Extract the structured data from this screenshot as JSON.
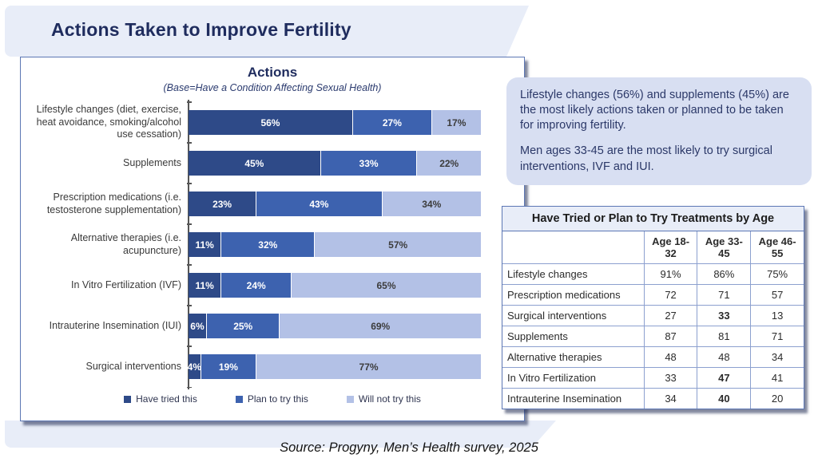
{
  "header": {
    "title": "Actions Taken to Improve Fertility"
  },
  "footer": {
    "source": "Source: Progyny, Men’s Health survey, 2025"
  },
  "annotation": {
    "paragraph1": "Lifestyle changes (56%) and supplements (45%) are the most likely actions taken or planned to be taken for improving fertility.",
    "paragraph2": "Men ages 33-45 are the most likely to try surgical interventions, IVF and IUI."
  },
  "colors": {
    "have_tried": "#2E4A88",
    "plan_to_try": "#3D62AF",
    "will_not_try": "#B3C1E6",
    "band_lavender": "#E8EDF8",
    "callout_lavender": "#D8DFF2",
    "panel_border": "#5C77B4",
    "title_navy": "#1F2C5E"
  },
  "chart_data": [
    {
      "type": "bar",
      "stacked": true,
      "orientation": "horizontal",
      "title": "Actions",
      "subtitle": "(Base=Have a Condition Affecting Sexual Health)",
      "categories": [
        "Lifestyle changes (diet, exercise, heat avoidance, smoking/alcohol use cessation)",
        "Supplements",
        "Prescription medications (i.e. testosterone supplementation)",
        "Alternative therapies (i.e. acupuncture)",
        "In Vitro Fertilization (IVF)",
        "Intrauterine Insemination (IUI)",
        "Surgical interventions"
      ],
      "series": [
        {
          "name": "Have tried this",
          "color": "#2E4A88",
          "text_color": "#FFFFFF",
          "values": [
            56,
            45,
            23,
            11,
            11,
            6,
            4
          ]
        },
        {
          "name": "Plan to try this",
          "color": "#3D62AF",
          "text_color": "#FFFFFF",
          "values": [
            27,
            33,
            43,
            32,
            24,
            25,
            19
          ]
        },
        {
          "name": "Will not try this",
          "color": "#B3C1E6",
          "text_color": "#3C3C3C",
          "values": [
            17,
            22,
            34,
            57,
            65,
            69,
            77
          ]
        }
      ],
      "value_suffix": "%",
      "xlim": [
        0,
        100
      ],
      "legend_position": "bottom"
    },
    {
      "type": "table",
      "title": "Have Tried or Plan to Try Treatments by Age",
      "columns": [
        "",
        "Age 18-32",
        "Age 33-45",
        "Age 46-55"
      ],
      "rows": [
        {
          "label": "Lifestyle changes",
          "values": [
            "91%",
            "86%",
            "75%"
          ],
          "bold_cols": []
        },
        {
          "label": "Prescription medications",
          "values": [
            "72",
            "71",
            "57"
          ],
          "bold_cols": []
        },
        {
          "label": "Surgical interventions",
          "values": [
            "27",
            "33",
            "13"
          ],
          "bold_cols": [
            1
          ]
        },
        {
          "label": "Supplements",
          "values": [
            "87",
            "81",
            "71"
          ],
          "bold_cols": []
        },
        {
          "label": "Alternative therapies",
          "values": [
            "48",
            "48",
            "34"
          ],
          "bold_cols": []
        },
        {
          "label": "In Vitro Fertilization",
          "values": [
            "33",
            "47",
            "41"
          ],
          "bold_cols": [
            1
          ]
        },
        {
          "label": "Intrauterine Insemination",
          "values": [
            "34",
            "40",
            "20"
          ],
          "bold_cols": [
            1
          ]
        }
      ]
    }
  ]
}
